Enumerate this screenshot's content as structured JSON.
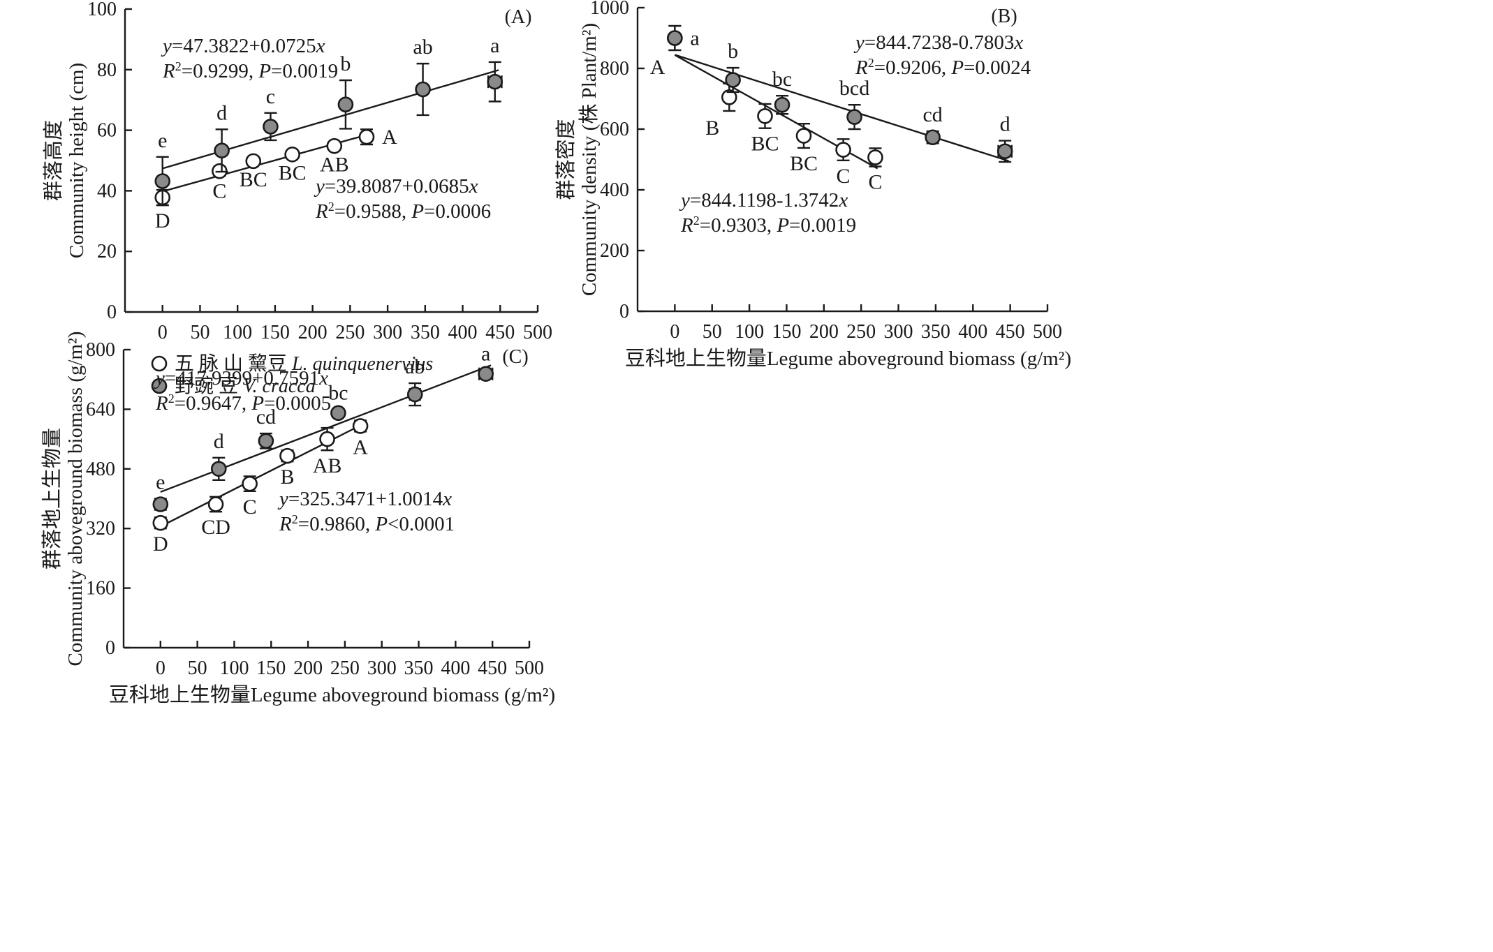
{
  "chart_data": [
    {
      "id": "A",
      "type": "scatter",
      "panel_label": "(A)",
      "ylabel_cn": "群落高度",
      "ylabel_en": "Community height (cm)",
      "xlabel": "",
      "xlim": [
        -50,
        500
      ],
      "ylim": [
        0,
        100
      ],
      "xticks": [
        0,
        50,
        100,
        150,
        200,
        250,
        300,
        350,
        400,
        450,
        500
      ],
      "yticks": [
        0,
        20,
        40,
        60,
        80,
        100
      ],
      "series": [
        {
          "name": "五脉山黧豆 L. quinquenervius",
          "style": "open",
          "points": [
            {
              "x": 0,
              "y": 37.8,
              "yerr": 2.5,
              "xerr": 0,
              "label": "D",
              "pos": "below"
            },
            {
              "x": 76,
              "y": 46.5,
              "yerr": 1.5,
              "xerr": 0,
              "label": "C",
              "pos": "below"
            },
            {
              "x": 121,
              "y": 49.8,
              "yerr": 1.0,
              "xerr": 0,
              "label": "BC",
              "pos": "below"
            },
            {
              "x": 173,
              "y": 52.0,
              "yerr": 1.0,
              "xerr": 0,
              "label": "BC",
              "pos": "below"
            },
            {
              "x": 229,
              "y": 54.8,
              "yerr": 1.0,
              "xerr": 0,
              "label": "AB",
              "pos": "below"
            },
            {
              "x": 272,
              "y": 57.8,
              "yerr": 2.5,
              "xerr": 6,
              "label": "A",
              "pos": "right"
            }
          ],
          "fit": {
            "intercept": 39.8087,
            "slope": 0.0685,
            "x_range": [
              0,
              272
            ]
          },
          "equation": "y=39.8087+0.0685x",
          "stats": "R²=0.9588, P=0.0006"
        },
        {
          "name": "野豌豆 V. cracca",
          "style": "filled",
          "points": [
            {
              "x": 0,
              "y": 43.2,
              "yerr": 8.0,
              "xerr": 0,
              "label": "e",
              "pos": "above"
            },
            {
              "x": 79,
              "y": 53.3,
              "yerr": 7.0,
              "xerr": 0,
              "label": "d",
              "pos": "above"
            },
            {
              "x": 144,
              "y": 61.2,
              "yerr": 4.5,
              "xerr": 0,
              "label": "c",
              "pos": "above"
            },
            {
              "x": 244,
              "y": 68.5,
              "yerr": 8.0,
              "xerr": 0,
              "label": "b",
              "pos": "above"
            },
            {
              "x": 347,
              "y": 73.5,
              "yerr": 8.5,
              "xerr": 0,
              "label": "ab",
              "pos": "above"
            },
            {
              "x": 443,
              "y": 76.0,
              "yerr": 6.5,
              "xerr": 9,
              "label": "a",
              "pos": "above"
            }
          ],
          "fit": {
            "intercept": 47.3822,
            "slope": 0.0725,
            "x_range": [
              0,
              448
            ]
          },
          "equation": "y=47.3822+0.0725x",
          "stats": "R²=0.9299, P=0.0019"
        }
      ],
      "legend": [
        {
          "style": "open",
          "cn": "五 脉 山 黧豆",
          "en": "L. quinquenervius"
        },
        {
          "style": "filled",
          "cn": "野豌 豆",
          "en": "V. cracca"
        }
      ]
    },
    {
      "id": "B",
      "type": "scatter",
      "panel_label": "(B)",
      "ylabel_cn": "群落密度",
      "ylabel_en": "Community density (株 Plant/m²)",
      "xlabel": "豆科地上生物量Legume aboveground biomass (g/m²)",
      "xlim": [
        -50,
        500
      ],
      "ylim": [
        0,
        1000
      ],
      "xticks": [
        0,
        50,
        100,
        150,
        200,
        250,
        300,
        350,
        400,
        450,
        500
      ],
      "yticks": [
        0,
        200,
        400,
        600,
        800,
        1000
      ],
      "series": [
        {
          "name": "五脉山黧豆 L. quinquenervius",
          "style": "open",
          "points": [
            {
              "x": 0,
              "y": 900,
              "yerr": 40,
              "xerr": 0,
              "label": "A",
              "pos": "belowleft"
            },
            {
              "x": 73,
              "y": 705,
              "yerr": 45,
              "xerr": 0,
              "label": "B",
              "pos": "belowleft"
            },
            {
              "x": 121,
              "y": 643,
              "yerr": 40,
              "xerr": 0,
              "label": "BC",
              "pos": "below"
            },
            {
              "x": 173,
              "y": 578,
              "yerr": 40,
              "xerr": 0,
              "label": "BC",
              "pos": "below"
            },
            {
              "x": 226,
              "y": 532,
              "yerr": 35,
              "xerr": 0,
              "label": "C",
              "pos": "below"
            },
            {
              "x": 269,
              "y": 507,
              "yerr": 30,
              "xerr": 6,
              "label": "C",
              "pos": "below"
            }
          ],
          "fit": {
            "intercept": 844.1198,
            "slope": -1.3742,
            "x_range": [
              0,
              272
            ]
          },
          "equation": "y=844.1198-1.3742x",
          "stats": "R²=0.9303, P=0.0019"
        },
        {
          "name": "野豌豆 V. cracca",
          "style": "filled",
          "points": [
            {
              "x": 0,
              "y": 900,
              "yerr": 40,
              "xerr": 0,
              "label": "a",
              "pos": "right"
            },
            {
              "x": 78,
              "y": 762,
              "yerr": 40,
              "xerr": 0,
              "label": "b",
              "pos": "above"
            },
            {
              "x": 144,
              "y": 680,
              "yerr": 30,
              "xerr": 0,
              "label": "bc",
              "pos": "above"
            },
            {
              "x": 241,
              "y": 640,
              "yerr": 40,
              "xerr": 0,
              "label": "bcd",
              "pos": "above"
            },
            {
              "x": 346,
              "y": 573,
              "yerr": 20,
              "xerr": 7,
              "label": "cd",
              "pos": "above"
            },
            {
              "x": 443,
              "y": 527,
              "yerr": 35,
              "xerr": 9,
              "label": "d",
              "pos": "above"
            }
          ],
          "fit": {
            "intercept": 844.7238,
            "slope": -0.7803,
            "x_range": [
              0,
              448
            ]
          },
          "equation": "y=844.7238-0.7803x",
          "stats": "R²=0.9206, P=0.0024"
        }
      ]
    },
    {
      "id": "C",
      "type": "scatter",
      "panel_label": "(C)",
      "ylabel_cn": "群落地上生物量",
      "ylabel_en": "Community aboveground biomass (g/m²)",
      "xlabel": "豆科地上生物量Legume aboveground biomass (g/m²)",
      "xlim": [
        -50,
        500
      ],
      "ylim": [
        0,
        800
      ],
      "xticks": [
        0,
        50,
        100,
        150,
        200,
        250,
        300,
        350,
        400,
        450,
        500
      ],
      "yticks": [
        0,
        160,
        320,
        480,
        640,
        800
      ],
      "series": [
        {
          "name": "五脉山黧豆 L. quinquenervius",
          "style": "open",
          "points": [
            {
              "x": 0,
              "y": 335,
              "yerr": 15,
              "xerr": 0,
              "label": "D",
              "pos": "below"
            },
            {
              "x": 75,
              "y": 385,
              "yerr": 20,
              "xerr": 0,
              "label": "CD",
              "pos": "below"
            },
            {
              "x": 121,
              "y": 440,
              "yerr": 20,
              "xerr": 0,
              "label": "C",
              "pos": "below"
            },
            {
              "x": 172,
              "y": 515,
              "yerr": 15,
              "xerr": 0,
              "label": "B",
              "pos": "below"
            },
            {
              "x": 226,
              "y": 560,
              "yerr": 30,
              "xerr": 0,
              "label": "AB",
              "pos": "below"
            },
            {
              "x": 271,
              "y": 595,
              "yerr": 15,
              "xerr": 6,
              "label": "A",
              "pos": "below"
            }
          ],
          "fit": {
            "intercept": 325.3471,
            "slope": 1.0014,
            "x_range": [
              0,
              272
            ]
          },
          "equation": "y=325.3471+1.0014x",
          "stats": "R²=0.9860, P<0.0001"
        },
        {
          "name": "野豌豆 V. cracca",
          "style": "filled",
          "points": [
            {
              "x": 0,
              "y": 385,
              "yerr": 15,
              "xerr": 0,
              "label": "e",
              "pos": "above"
            },
            {
              "x": 79,
              "y": 480,
              "yerr": 30,
              "xerr": 0,
              "label": "d",
              "pos": "above"
            },
            {
              "x": 143,
              "y": 555,
              "yerr": 20,
              "xerr": 0,
              "label": "cd",
              "pos": "above"
            },
            {
              "x": 241,
              "y": 630,
              "yerr": 10,
              "xerr": 0,
              "label": "bc",
              "pos": "above"
            },
            {
              "x": 345,
              "y": 680,
              "yerr": 30,
              "xerr": 7,
              "label": "ab",
              "pos": "above"
            },
            {
              "x": 441,
              "y": 735,
              "yerr": 10,
              "xerr": 9,
              "label": "a",
              "pos": "above"
            }
          ],
          "fit": {
            "intercept": 417.9399,
            "slope": 0.7591,
            "x_range": [
              0,
              448
            ]
          },
          "equation": "y=417.9399+0.7591x",
          "stats": "R²=0.9647, P=0.0005"
        }
      ]
    }
  ]
}
